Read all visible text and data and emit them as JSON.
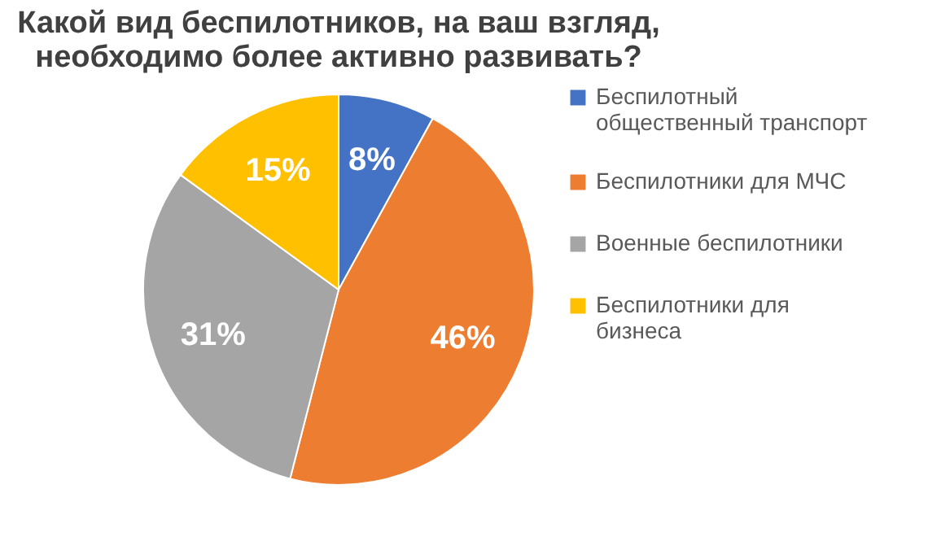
{
  "chart_data": {
    "type": "pie",
    "title": "Какой вид беспилотников, на ваш взгляд, необходимо более активно развивать?",
    "categories": [
      "Беспилотный общественный транспорт",
      "Беспилотники для МЧС",
      "Военные беспилотники",
      "Беспилотники для бизнеса"
    ],
    "values": [
      8,
      46,
      31,
      15
    ],
    "colors": [
      "#4472c4",
      "#ed7d31",
      "#a5a5a5",
      "#ffc000"
    ],
    "value_labels": [
      "8%",
      "46%",
      "31%",
      "15%"
    ],
    "legend": "right"
  }
}
